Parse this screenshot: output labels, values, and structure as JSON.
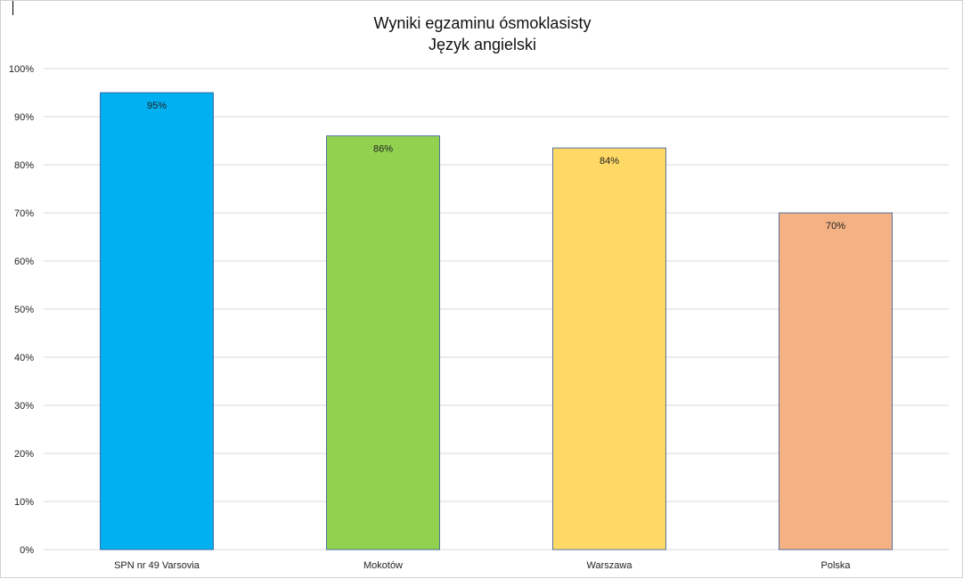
{
  "chart_data": {
    "type": "bar",
    "title_lines": [
      "Wyniki egzaminu ósmoklasisty",
      "Język angielski"
    ],
    "categories": [
      "SPN nr 49 Varsovia",
      "Mokotów",
      "Warszawa",
      "Polska"
    ],
    "values": [
      95,
      86,
      83.5,
      70
    ],
    "data_labels": [
      "95%",
      "86%",
      "84%",
      "70%"
    ],
    "colors": [
      "#00b0f0",
      "#92d050",
      "#ffd966",
      "#f4b183"
    ],
    "bar_stroke": "#2f5597",
    "y_ticks": [
      {
        "v": 0,
        "label": "0%"
      },
      {
        "v": 10,
        "label": "10%"
      },
      {
        "v": 20,
        "label": "20%"
      },
      {
        "v": 30,
        "label": "30%"
      },
      {
        "v": 40,
        "label": "40%"
      },
      {
        "v": 50,
        "label": "50%"
      },
      {
        "v": 60,
        "label": "60%"
      },
      {
        "v": 70,
        "label": "70%"
      },
      {
        "v": 80,
        "label": "80%"
      },
      {
        "v": 90,
        "label": "90%"
      },
      {
        "v": 100,
        "label": "100%"
      }
    ],
    "ylim": [
      0,
      100
    ],
    "grid": true,
    "legend": "none"
  }
}
